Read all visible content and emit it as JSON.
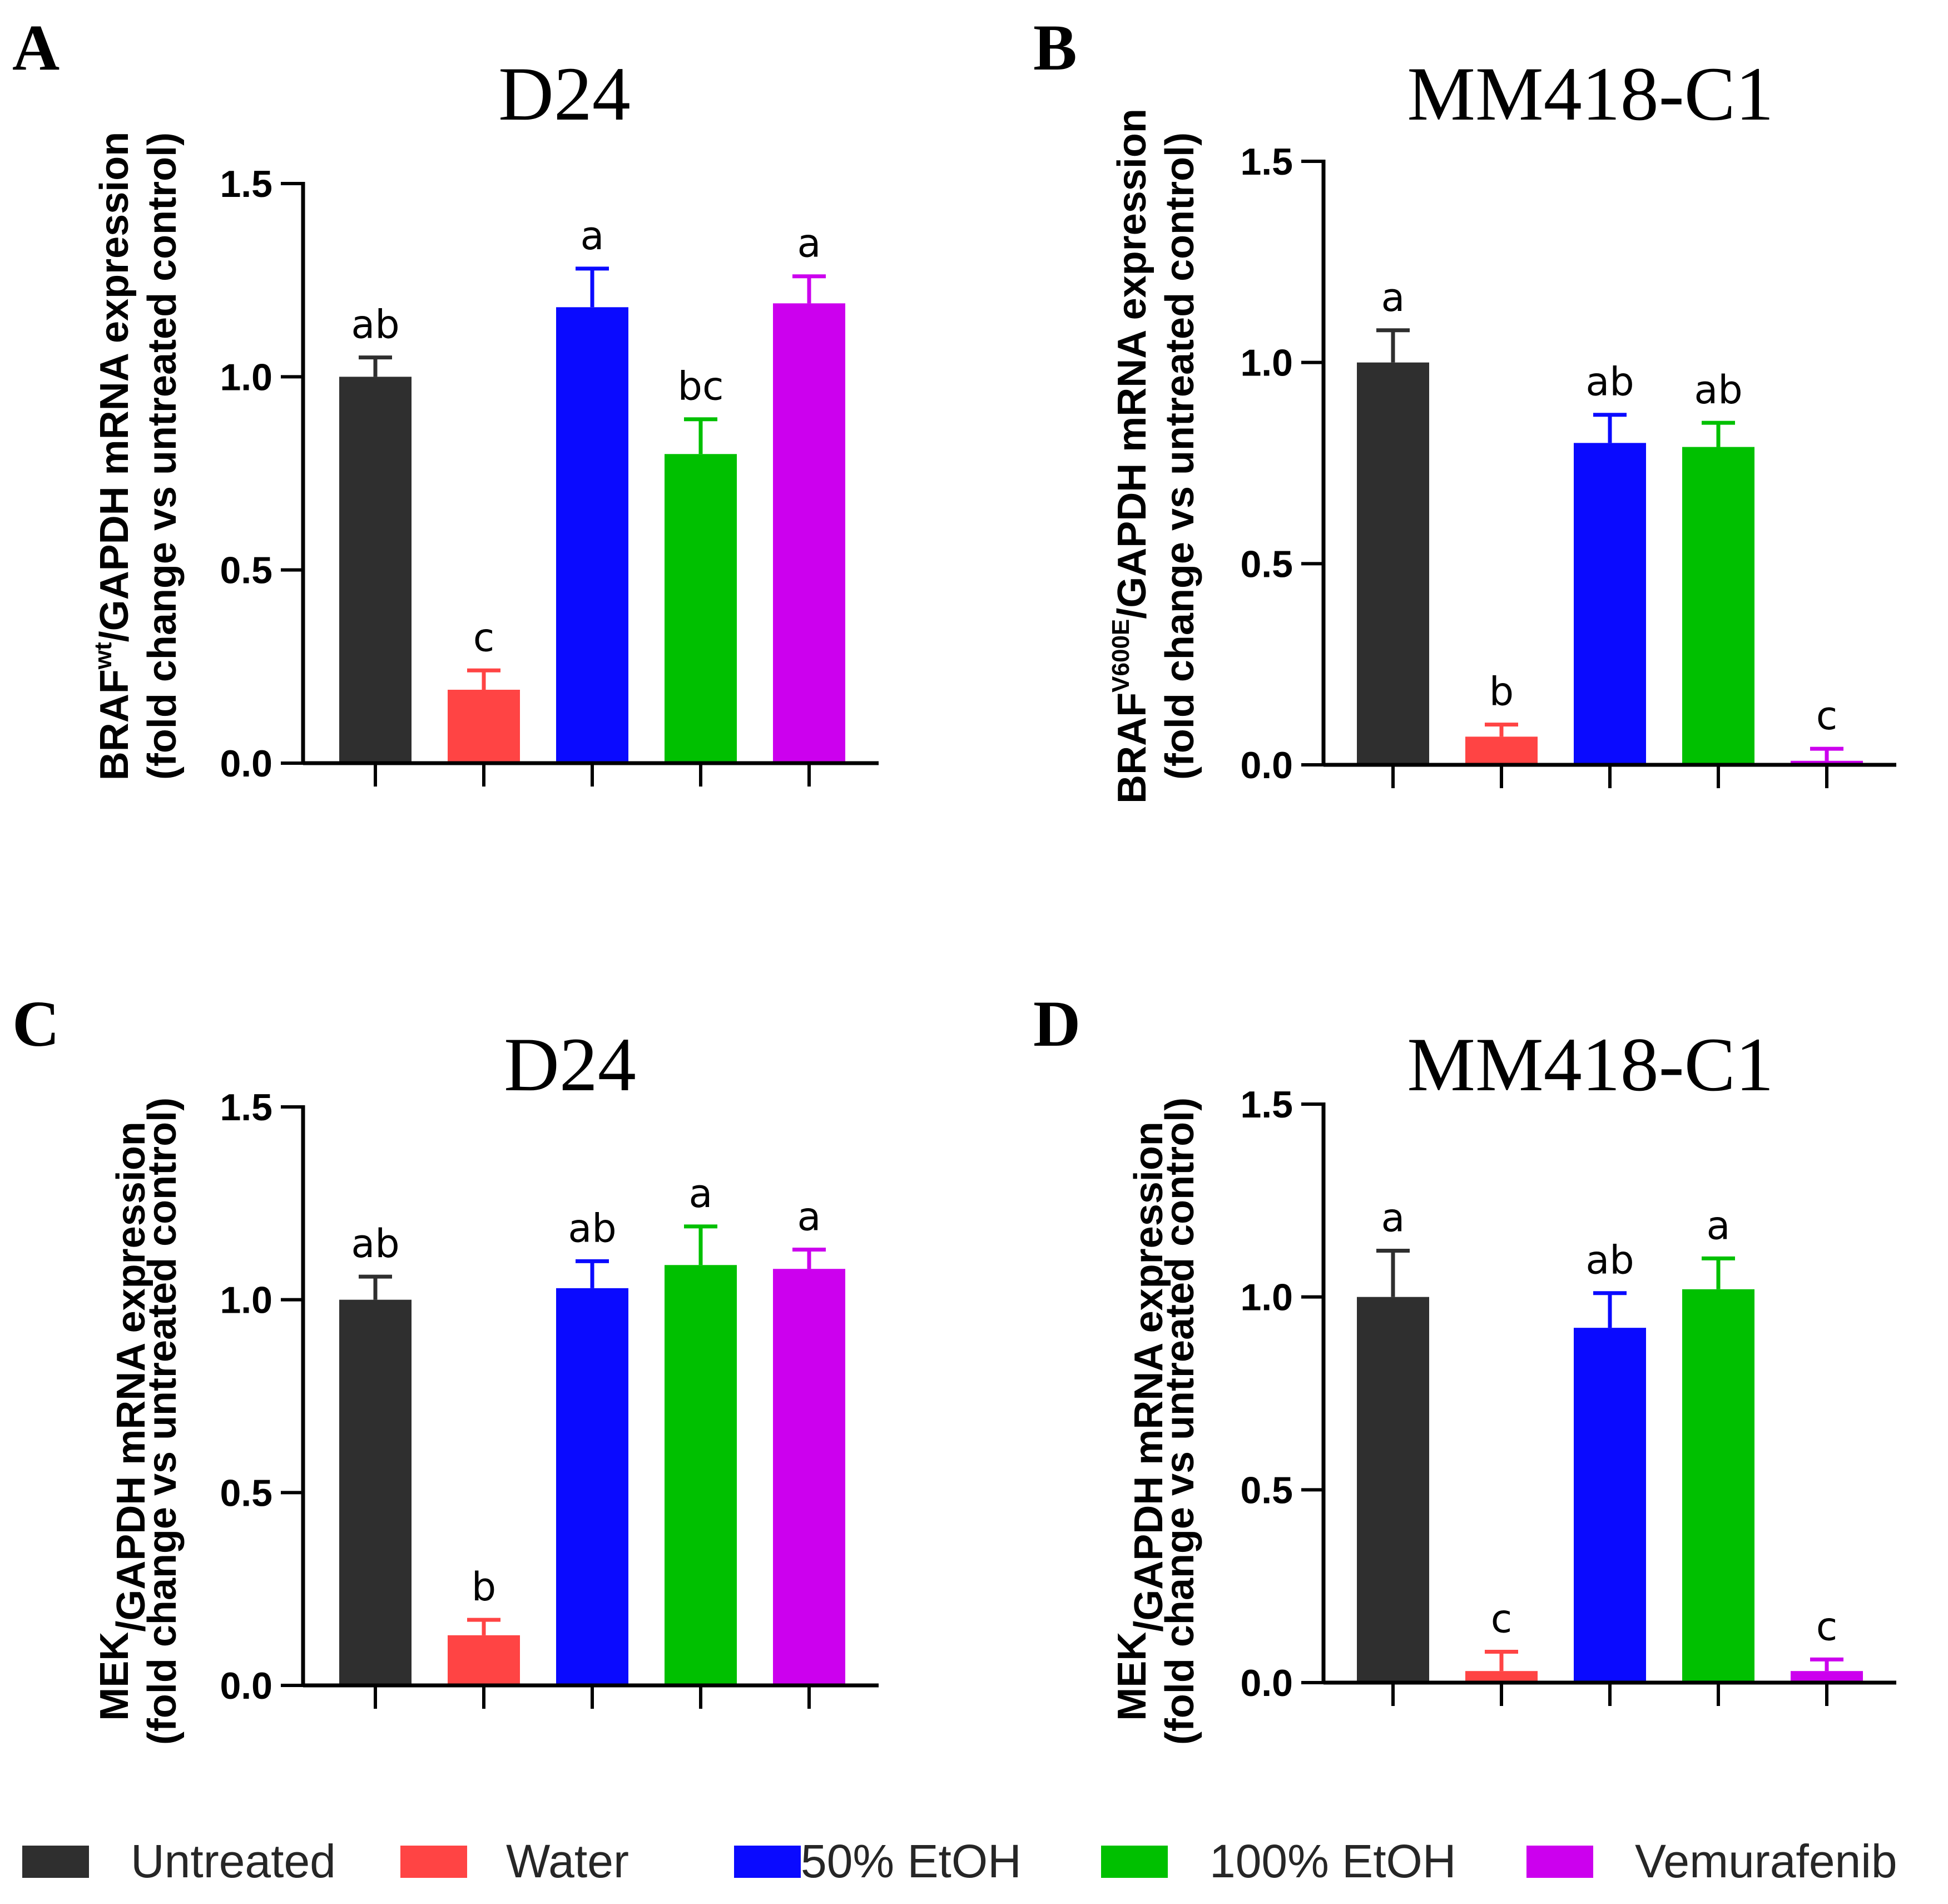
{
  "legend": [
    {
      "label": "Untreated",
      "color": "#2f2f2f"
    },
    {
      "label": "Water",
      "color": "#ff4444"
    },
    {
      "label": "50% EtOH",
      "color": "#0a0aff"
    },
    {
      "label": "100% EtOH",
      "color": "#00c000"
    },
    {
      "label": "Vemurafenib",
      "color": "#cc00ee"
    }
  ],
  "chart_data": [
    {
      "type": "bar",
      "panel": "A",
      "title": "D24",
      "ylabel": {
        "main": "BRAF",
        "sup": "wt",
        "rest": "/GAPDH mRNA expression",
        "line2": "(fold change vs untreated control)"
      },
      "ylim": [
        0,
        1.5
      ],
      "yticks": [
        "0.0",
        "0.5",
        "1.0",
        "1.5"
      ],
      "categories": [
        "Untreated",
        "Water",
        "50% EtOH",
        "100% EtOH",
        "Vemurafenib"
      ],
      "values": [
        1.0,
        0.19,
        1.18,
        0.8,
        1.19
      ],
      "errors": [
        0.05,
        0.05,
        0.1,
        0.09,
        0.07
      ],
      "significance": [
        "ab",
        "c",
        "a",
        "bc",
        "a"
      ]
    },
    {
      "type": "bar",
      "panel": "B",
      "title": "MM418-C1",
      "ylabel": {
        "main": "BRAF",
        "sup": "V600E",
        "rest": "/GAPDH mRNA expression",
        "line2": "(fold change vs untreated control)"
      },
      "ylim": [
        0,
        1.5
      ],
      "yticks": [
        "0.0",
        "0.5",
        "1.0",
        "1.5"
      ],
      "categories": [
        "Untreated",
        "Water",
        "50% EtOH",
        "100% EtOH",
        "Vemurafenib"
      ],
      "values": [
        1.0,
        0.07,
        0.8,
        0.79,
        0.01
      ],
      "errors": [
        0.08,
        0.03,
        0.07,
        0.06,
        0.03
      ],
      "significance": [
        "a",
        "b",
        "ab",
        "ab",
        "c"
      ]
    },
    {
      "type": "bar",
      "panel": "C",
      "title": "D24",
      "ylabel": {
        "main": "MEK",
        "sup": "",
        "rest": "/GAPDH mRNA expression",
        "line2": "(fold change vs untreated control)"
      },
      "ylim": [
        0,
        1.5
      ],
      "yticks": [
        "0.0",
        "0.5",
        "1.0",
        "1.5"
      ],
      "categories": [
        "Untreated",
        "Water",
        "50% EtOH",
        "100% EtOH",
        "Vemurafenib"
      ],
      "values": [
        1.0,
        0.13,
        1.03,
        1.09,
        1.08
      ],
      "errors": [
        0.06,
        0.04,
        0.07,
        0.1,
        0.05
      ],
      "significance": [
        "ab",
        "b",
        "ab",
        "a",
        "a"
      ]
    },
    {
      "type": "bar",
      "panel": "D",
      "title": "MM418-C1",
      "ylabel": {
        "main": "MEK",
        "sup": "",
        "rest": "/GAPDH mRNA expression",
        "line2": "(fold change vs untreated control)"
      },
      "ylim": [
        0,
        1.5
      ],
      "yticks": [
        "0.0",
        "0.5",
        "1.0",
        "1.5"
      ],
      "categories": [
        "Untreated",
        "Water",
        "50% EtOH",
        "100% EtOH",
        "Vemurafenib"
      ],
      "values": [
        1.0,
        0.03,
        0.92,
        1.02,
        0.03
      ],
      "errors": [
        0.12,
        0.05,
        0.09,
        0.08,
        0.03
      ],
      "significance": [
        "a",
        "c",
        "ab",
        "a",
        "c"
      ]
    }
  ]
}
